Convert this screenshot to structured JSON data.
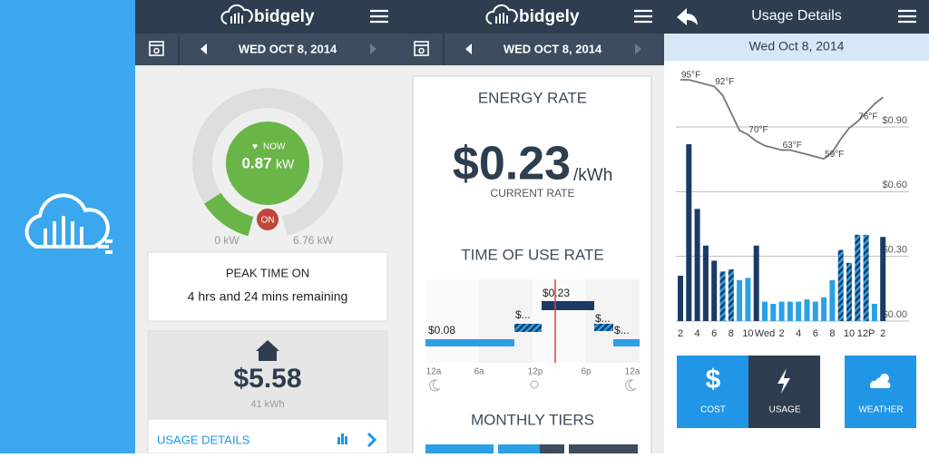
{
  "brand": "bidgely",
  "dashboard": {
    "date": "WED OCT 8, 2014",
    "now_label": "NOW",
    "now_value": 0.87,
    "now_unit": "kW",
    "status": "ON",
    "gauge_ticks": [
      {
        "value": 0,
        "label": "0 kW"
      },
      {
        "value": 6.76,
        "label": "6.76 kW"
      }
    ],
    "peak_title": "PEAK TIME ON",
    "peak_text": "4 hrs and 24 mins remaining",
    "cost": "$5.58",
    "usage": "41 kWh",
    "link": "USAGE DETAILS"
  },
  "rate": {
    "date": "WED OCT 8, 2014",
    "title": "ENERGY RATE",
    "value": "$0.23",
    "unit": "/kWh",
    "caption": "CURRENT RATE",
    "tou_title": "TIME OF USE RATE",
    "tou_labels": [
      "$0.08",
      "$...",
      "$0.23",
      "$...",
      "$..."
    ],
    "tou_times": [
      "12a",
      "6a",
      "12p",
      "6p",
      "12a"
    ],
    "tiers_title": "MONTHLY TIERS"
  },
  "usage": {
    "title": "Usage Details",
    "date": "Wed Oct 8, 2014",
    "chart_data": {
      "type": "bar",
      "categories": [
        "2",
        null,
        "4",
        null,
        "6",
        null,
        "8",
        null,
        "10",
        null,
        "Wed",
        null,
        "2",
        null,
        "4",
        null,
        "6",
        null,
        "8",
        null,
        "10",
        null,
        "12P",
        null,
        "2"
      ],
      "values": [
        0.21,
        0.82,
        0.52,
        0.35,
        0.28,
        0.23,
        0.24,
        0.19,
        0.2,
        0.35,
        0.09,
        0.08,
        0.09,
        0.09,
        0.09,
        0.1,
        0.09,
        0.11,
        0.19,
        0.33,
        0.27,
        0.4,
        0.4,
        0.08,
        0.39
      ],
      "colors": [
        "#1b3b66",
        "#1b3b66",
        "#1b3b66",
        "#1b3b66",
        "#1b3b66",
        "hatched",
        "hatched",
        "#2ba0e6",
        "#2ba0e6",
        "#1b3b66",
        "#2ba0e6",
        "#2ba0e6",
        "#2ba0e6",
        "#2ba0e6",
        "#2ba0e6",
        "#2ba0e6",
        "#2ba0e6",
        "#2ba0e6",
        "#2ba0e6",
        "hatched",
        "hatched",
        "hatched",
        "hatched",
        "#2ba0e6",
        "#1b3b66"
      ],
      "ylim": [
        0,
        0.9
      ],
      "yticks": [
        {
          "value": 0,
          "label": "$0.00"
        },
        {
          "value": 0.3,
          "label": "$0.30"
        },
        {
          "value": 0.6,
          "label": "$0.60"
        },
        {
          "value": 0.9,
          "label": "$0.90"
        }
      ],
      "grid": true,
      "temperature": {
        "values": [
          95,
          95,
          94,
          93,
          92,
          88,
          80,
          72,
          70,
          67,
          65,
          64,
          63,
          63,
          62,
          61,
          60,
          59,
          62,
          68,
          73,
          76,
          80,
          84,
          87
        ],
        "value_labels": [
          "95°F",
          null,
          null,
          null,
          "92°F",
          null,
          null,
          null,
          "70°F",
          null,
          null,
          null,
          "63°F",
          null,
          null,
          null,
          null,
          "59°F",
          null,
          null,
          null,
          "76°F",
          null,
          null,
          null
        ],
        "color": "#777777"
      }
    },
    "cost_icon": "$",
    "tabs": [
      "COST",
      "USAGE",
      "WEATHER"
    ]
  }
}
